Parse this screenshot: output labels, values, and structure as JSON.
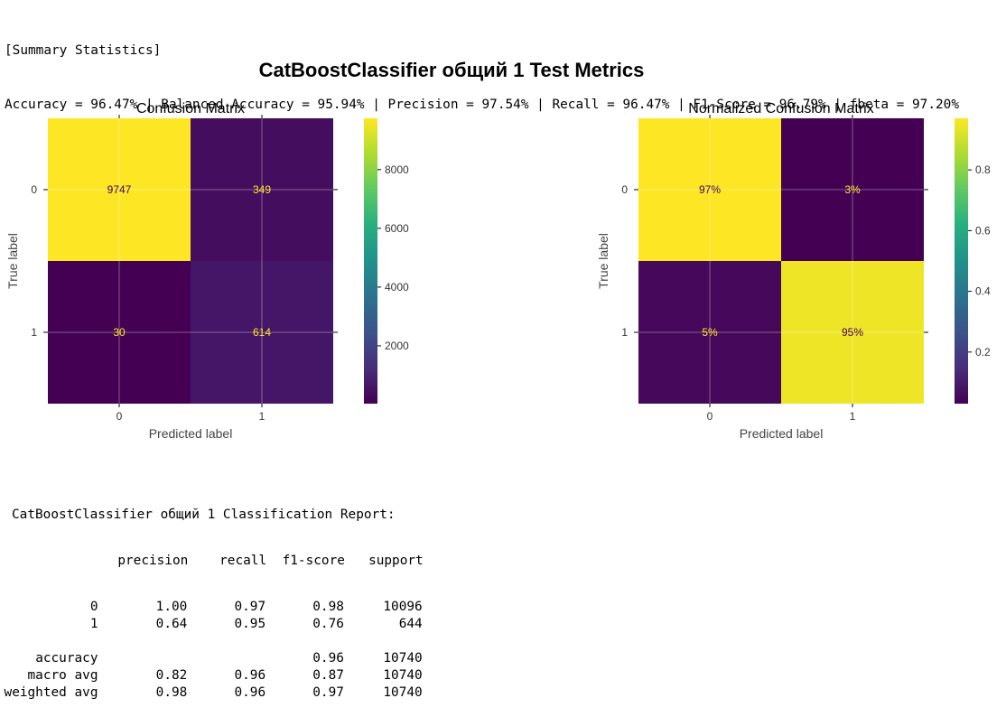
{
  "summary": {
    "header": "[Summary Statistics]",
    "line": "Accuracy = 96.47% | Balanced Accuracy = 95.94% | Precision = 97.54% | Recall = 96.47% | F1-Score = 96.79% | fbeta = 97.20%"
  },
  "chart_data": [
    {
      "type": "heatmap",
      "suptitle": "CatBoostClassifier общий 1 Test Metrics",
      "title": "Confusion Matrix",
      "xlabel": "Predicted label",
      "ylabel": "True label",
      "x_categories": [
        "0",
        "1"
      ],
      "y_categories": [
        "0",
        "1"
      ],
      "values": [
        [
          9747,
          349
        ],
        [
          30,
          614
        ]
      ],
      "cell_labels": [
        [
          "9747",
          "349"
        ],
        [
          "30",
          "614"
        ]
      ],
      "colormap": "viridis",
      "vmin": 30,
      "vmax": 9747,
      "colorbar_ticks": [
        2000,
        4000,
        6000,
        8000
      ],
      "colorbar_tick_labels": [
        "2000",
        "4000",
        "6000",
        "8000"
      ],
      "grid": true
    },
    {
      "type": "heatmap",
      "title": "Normalized Confusion Matrix",
      "xlabel": "Predicted label",
      "ylabel": "True label",
      "x_categories": [
        "0",
        "1"
      ],
      "y_categories": [
        "0",
        "1"
      ],
      "values": [
        [
          0.97,
          0.03
        ],
        [
          0.05,
          0.95
        ]
      ],
      "cell_labels": [
        [
          "97%",
          "3%"
        ],
        [
          "5%",
          "95%"
        ]
      ],
      "colormap": "viridis",
      "vmin": 0.03,
      "vmax": 0.97,
      "colorbar_ticks": [
        0.2,
        0.4,
        0.6,
        0.8
      ],
      "colorbar_tick_labels": [
        "0.2",
        "0.4",
        "0.6",
        "0.8"
      ],
      "grid": true
    }
  ],
  "report": {
    "title": "CatBoostClassifier общий 1 Classification Report:",
    "columns": [
      "precision",
      "recall",
      "f1-score",
      "support"
    ],
    "rows": [
      {
        "label": "0",
        "precision": "1.00",
        "recall": "0.97",
        "f1": "0.98",
        "support": "10096"
      },
      {
        "label": "1",
        "precision": "0.64",
        "recall": "0.95",
        "f1": "0.76",
        "support": "644"
      },
      {
        "label": "",
        "precision": "",
        "recall": "",
        "f1": "",
        "support": ""
      },
      {
        "label": "accuracy",
        "precision": "",
        "recall": "",
        "f1": "0.96",
        "support": "10740"
      },
      {
        "label": "macro avg",
        "precision": "0.82",
        "recall": "0.96",
        "f1": "0.87",
        "support": "10740"
      },
      {
        "label": "weighted avg",
        "precision": "0.98",
        "recall": "0.96",
        "f1": "0.97",
        "support": "10740"
      }
    ]
  }
}
